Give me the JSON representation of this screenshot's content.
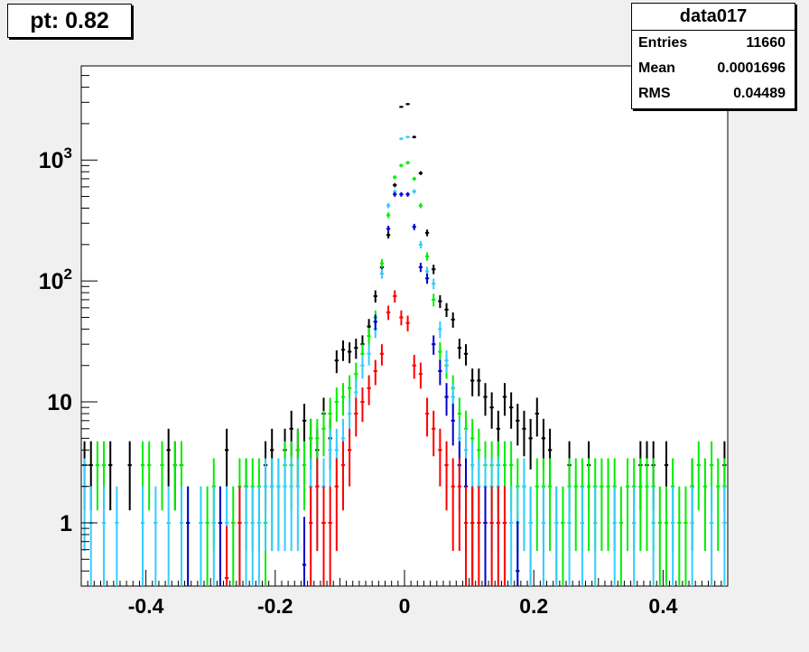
{
  "title": "pt: 0.82",
  "stats": {
    "name": "data017",
    "rows": [
      {
        "label": "Entries",
        "value": "11660"
      },
      {
        "label": "Mean",
        "value": "0.0001696"
      },
      {
        "label": "RMS",
        "value": "0.04489"
      }
    ]
  },
  "chart_data": {
    "type": "scatter",
    "title": "pt: 0.82",
    "xlabel": "",
    "ylabel": "",
    "xlim": [
      -0.5,
      0.5
    ],
    "ylim": [
      0.3,
      6000
    ],
    "y_scale": "log",
    "grid": false,
    "bin_width": 0.01,
    "x_tick_labels": [
      "-0.4",
      "-0.2",
      "0",
      "0.2",
      "0.4"
    ],
    "y_tick_labels": [
      {
        "value": 1,
        "text": "1"
      },
      {
        "value": 10,
        "text": "10"
      },
      {
        "value": 100,
        "base": "10",
        "exp": "2"
      },
      {
        "value": 1000,
        "base": "10",
        "exp": "3"
      }
    ],
    "series": [
      {
        "color": "#000000",
        "points": [
          [
            -0.495,
            3
          ],
          [
            -0.485,
            3
          ],
          [
            -0.455,
            3
          ],
          [
            -0.425,
            3
          ],
          [
            -0.365,
            4
          ],
          [
            -0.355,
            3
          ],
          [
            -0.345,
            3
          ],
          [
            -0.275,
            4
          ],
          [
            -0.245,
            2
          ],
          [
            -0.215,
            3
          ],
          [
            -0.205,
            4
          ],
          [
            -0.185,
            4
          ],
          [
            -0.175,
            6
          ],
          [
            -0.165,
            4
          ],
          [
            -0.155,
            7
          ],
          [
            -0.145,
            5
          ],
          [
            -0.135,
            4
          ],
          [
            -0.125,
            8
          ],
          [
            -0.115,
            5
          ],
          [
            -0.105,
            22
          ],
          [
            -0.095,
            27
          ],
          [
            -0.085,
            26
          ],
          [
            -0.075,
            28
          ],
          [
            -0.065,
            30
          ],
          [
            -0.055,
            42
          ],
          [
            -0.045,
            75
          ],
          [
            -0.035,
            130
          ],
          [
            -0.025,
            240
          ],
          [
            -0.015,
            620
          ],
          [
            -0.005,
            2750
          ],
          [
            0.005,
            2900
          ],
          [
            0.015,
            1550
          ],
          [
            0.025,
            780
          ],
          [
            0.035,
            250
          ],
          [
            0.045,
            125
          ],
          [
            0.055,
            68
          ],
          [
            0.065,
            58
          ],
          [
            0.075,
            48
          ],
          [
            0.085,
            28
          ],
          [
            0.095,
            25
          ],
          [
            0.105,
            15
          ],
          [
            0.115,
            15
          ],
          [
            0.125,
            11
          ],
          [
            0.135,
            9
          ],
          [
            0.145,
            6
          ],
          [
            0.155,
            11
          ],
          [
            0.165,
            9
          ],
          [
            0.175,
            7
          ],
          [
            0.185,
            6
          ],
          [
            0.195,
            5
          ],
          [
            0.205,
            8
          ],
          [
            0.215,
            5
          ],
          [
            0.225,
            4
          ],
          [
            0.255,
            3
          ],
          [
            0.285,
            3
          ],
          [
            0.365,
            3
          ],
          [
            0.375,
            3
          ],
          [
            0.385,
            3
          ],
          [
            0.405,
            3
          ],
          [
            0.445,
            2
          ],
          [
            0.495,
            3
          ]
        ]
      },
      {
        "color": "#00ee00",
        "points": [
          [
            -0.475,
            3
          ],
          [
            -0.465,
            3
          ],
          [
            -0.405,
            3
          ],
          [
            -0.395,
            3
          ],
          [
            -0.375,
            3
          ],
          [
            -0.355,
            3
          ],
          [
            -0.345,
            3
          ],
          [
            -0.335,
            1
          ],
          [
            -0.315,
            1
          ],
          [
            -0.305,
            1
          ],
          [
            -0.295,
            2
          ],
          [
            -0.285,
            1
          ],
          [
            -0.265,
            1
          ],
          [
            -0.255,
            2
          ],
          [
            -0.245,
            2
          ],
          [
            -0.235,
            2
          ],
          [
            -0.225,
            2
          ],
          [
            -0.215,
            1
          ],
          [
            -0.205,
            2
          ],
          [
            -0.195,
            2
          ],
          [
            -0.185,
            3
          ],
          [
            -0.175,
            3
          ],
          [
            -0.165,
            4
          ],
          [
            -0.155,
            3
          ],
          [
            -0.145,
            5
          ],
          [
            -0.135,
            5
          ],
          [
            -0.125,
            6
          ],
          [
            -0.115,
            8
          ],
          [
            -0.105,
            10
          ],
          [
            -0.095,
            11
          ],
          [
            -0.085,
            13
          ],
          [
            -0.075,
            17
          ],
          [
            -0.065,
            25
          ],
          [
            -0.055,
            35
          ],
          [
            -0.045,
            50
          ],
          [
            -0.035,
            140
          ],
          [
            -0.025,
            350
          ],
          [
            -0.015,
            720
          ],
          [
            -0.005,
            900
          ],
          [
            0.005,
            950
          ],
          [
            0.015,
            700
          ],
          [
            0.025,
            420
          ],
          [
            0.035,
            160
          ],
          [
            0.045,
            70
          ],
          [
            0.055,
            26
          ],
          [
            0.065,
            20
          ],
          [
            0.075,
            13
          ],
          [
            0.085,
            8
          ],
          [
            0.095,
            6
          ],
          [
            0.105,
            5
          ],
          [
            0.115,
            4
          ],
          [
            0.125,
            3
          ],
          [
            0.135,
            3
          ],
          [
            0.145,
            3
          ],
          [
            0.155,
            3
          ],
          [
            0.165,
            3
          ],
          [
            0.175,
            2
          ],
          [
            0.185,
            2
          ],
          [
            0.195,
            1
          ],
          [
            0.205,
            2
          ],
          [
            0.215,
            2
          ],
          [
            0.225,
            2
          ],
          [
            0.235,
            1
          ],
          [
            0.245,
            1
          ],
          [
            0.255,
            2
          ],
          [
            0.265,
            2
          ],
          [
            0.275,
            2
          ],
          [
            0.285,
            2
          ],
          [
            0.295,
            2
          ],
          [
            0.305,
            2
          ],
          [
            0.315,
            2
          ],
          [
            0.325,
            2
          ],
          [
            0.335,
            1
          ],
          [
            0.345,
            2
          ],
          [
            0.355,
            2
          ],
          [
            0.365,
            2
          ],
          [
            0.375,
            2
          ],
          [
            0.385,
            2
          ],
          [
            0.395,
            1
          ],
          [
            0.405,
            1
          ],
          [
            0.415,
            2
          ],
          [
            0.425,
            1
          ],
          [
            0.435,
            1
          ],
          [
            0.445,
            2
          ],
          [
            0.455,
            3
          ],
          [
            0.465,
            2
          ],
          [
            0.475,
            3
          ],
          [
            0.485,
            2
          ],
          [
            0.495,
            2
          ]
        ]
      },
      {
        "color": "#33ccff",
        "points": [
          [
            -0.495,
            2
          ],
          [
            -0.485,
            1
          ],
          [
            -0.465,
            1
          ],
          [
            -0.445,
            1
          ],
          [
            -0.405,
            1
          ],
          [
            -0.385,
            1
          ],
          [
            -0.365,
            1
          ],
          [
            -0.345,
            1
          ],
          [
            -0.315,
            1
          ],
          [
            -0.295,
            1
          ],
          [
            -0.275,
            1
          ],
          [
            -0.255,
            1
          ],
          [
            -0.245,
            1
          ],
          [
            -0.235,
            1
          ],
          [
            -0.225,
            1
          ],
          [
            -0.215,
            2
          ],
          [
            -0.205,
            2
          ],
          [
            -0.195,
            2
          ],
          [
            -0.185,
            2
          ],
          [
            -0.175,
            2
          ],
          [
            -0.165,
            2
          ],
          [
            -0.145,
            2
          ],
          [
            -0.135,
            2
          ],
          [
            -0.125,
            2
          ],
          [
            -0.115,
            4
          ],
          [
            -0.105,
            4
          ],
          [
            -0.095,
            5
          ],
          [
            -0.085,
            8
          ],
          [
            -0.075,
            12
          ],
          [
            -0.065,
            20
          ],
          [
            -0.055,
            25
          ],
          [
            -0.045,
            40
          ],
          [
            -0.035,
            115
          ],
          [
            -0.025,
            420
          ],
          [
            -0.015,
            545
          ],
          [
            -0.005,
            1500
          ],
          [
            0.005,
            1550
          ],
          [
            0.015,
            550
          ],
          [
            0.025,
            200
          ],
          [
            0.035,
            120
          ],
          [
            0.045,
            95
          ],
          [
            0.055,
            40
          ],
          [
            0.065,
            22
          ],
          [
            0.075,
            11
          ],
          [
            0.085,
            5
          ],
          [
            0.095,
            4
          ],
          [
            0.105,
            3
          ],
          [
            0.115,
            2
          ],
          [
            0.125,
            2
          ],
          [
            0.135,
            2
          ],
          [
            0.145,
            2
          ],
          [
            0.155,
            1
          ],
          [
            0.165,
            1
          ],
          [
            0.175,
            1
          ],
          [
            0.185,
            2
          ],
          [
            0.195,
            1
          ],
          [
            0.215,
            1
          ],
          [
            0.235,
            1
          ],
          [
            0.255,
            1
          ],
          [
            0.275,
            1
          ],
          [
            0.295,
            1
          ],
          [
            0.325,
            1
          ],
          [
            0.355,
            1
          ],
          [
            0.385,
            1
          ],
          [
            0.415,
            1
          ],
          [
            0.445,
            1
          ],
          [
            0.475,
            1
          ],
          [
            0.495,
            1
          ]
        ]
      },
      {
        "color": "#0000cc",
        "points": [
          [
            -0.335,
            1
          ],
          [
            -0.285,
            1
          ],
          [
            -0.155,
            0.45
          ],
          [
            -0.125,
            1
          ],
          [
            -0.045,
            46
          ],
          [
            -0.025,
            270
          ],
          [
            -0.015,
            520
          ],
          [
            -0.005,
            520
          ],
          [
            0.005,
            520
          ],
          [
            0.015,
            280
          ],
          [
            0.025,
            130
          ],
          [
            0.035,
            105
          ],
          [
            0.045,
            30
          ],
          [
            0.055,
            18
          ],
          [
            0.065,
            11
          ],
          [
            0.075,
            7
          ],
          [
            0.085,
            3
          ],
          [
            0.095,
            2
          ],
          [
            0.105,
            1
          ],
          [
            0.125,
            1
          ],
          [
            0.155,
            1
          ],
          [
            0.175,
            0.4
          ]
        ]
      },
      {
        "color": "#ff0000",
        "points": [
          [
            -0.275,
            0.35
          ],
          [
            -0.255,
            1
          ],
          [
            -0.145,
            1
          ],
          [
            -0.135,
            2
          ],
          [
            -0.125,
            1
          ],
          [
            -0.115,
            1
          ],
          [
            -0.105,
            2
          ],
          [
            -0.095,
            3
          ],
          [
            -0.085,
            4
          ],
          [
            -0.075,
            8
          ],
          [
            -0.065,
            10
          ],
          [
            -0.055,
            13
          ],
          [
            -0.045,
            18
          ],
          [
            -0.035,
            25
          ],
          [
            -0.025,
            55
          ],
          [
            -0.015,
            75
          ],
          [
            -0.005,
            50
          ],
          [
            0.005,
            45
          ],
          [
            0.015,
            20
          ],
          [
            0.025,
            17
          ],
          [
            0.035,
            8
          ],
          [
            0.045,
            6
          ],
          [
            0.055,
            4
          ],
          [
            0.065,
            3
          ],
          [
            0.075,
            2
          ],
          [
            0.085,
            2
          ],
          [
            0.095,
            1
          ],
          [
            0.105,
            1
          ],
          [
            0.115,
            1
          ],
          [
            0.135,
            1
          ],
          [
            0.145,
            1
          ],
          [
            0.155,
            1
          ]
        ]
      }
    ]
  }
}
